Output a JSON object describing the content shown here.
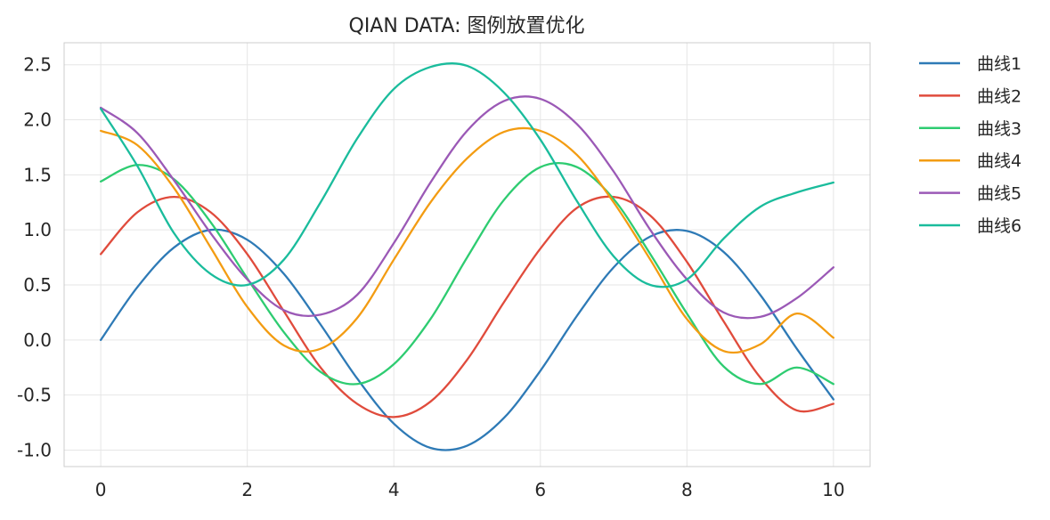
{
  "chart_data": {
    "type": "line",
    "title": "QIAN DATA: 图例放置优化",
    "xlabel": "",
    "ylabel": "",
    "xlim": [
      -0.5,
      10.5
    ],
    "ylim": [
      -1.15,
      2.7
    ],
    "x_ticks": [
      0,
      2,
      4,
      6,
      8,
      10
    ],
    "x_tick_labels": [
      "0",
      "2",
      "4",
      "6",
      "8",
      "10"
    ],
    "y_ticks": [
      -1.0,
      -0.5,
      0.0,
      0.5,
      1.0,
      1.5,
      2.0,
      2.5
    ],
    "y_tick_labels": [
      "-1.0",
      "-0.5",
      "0.0",
      "0.5",
      "1.0",
      "1.5",
      "2.0",
      "2.5"
    ],
    "grid": true,
    "legend_placement": "outside-right-top",
    "x": [
      0,
      0.5,
      1,
      1.5,
      2,
      2.5,
      3,
      3.5,
      4,
      4.5,
      5,
      5.5,
      6,
      6.5,
      7,
      7.5,
      8,
      8.5,
      9,
      9.5,
      10
    ],
    "series": [
      {
        "name": "曲线1",
        "color": "#2e7ab6",
        "values": [
          0.0,
          0.48,
          0.84,
          1.0,
          0.91,
          0.6,
          0.14,
          -0.35,
          -0.76,
          -0.98,
          -0.96,
          -0.71,
          -0.28,
          0.22,
          0.66,
          0.94,
          0.99,
          0.8,
          0.41,
          -0.08,
          -0.54
        ]
      },
      {
        "name": "曲线2",
        "color": "#e04b3c",
        "values": [
          0.78,
          1.16,
          1.3,
          1.16,
          0.78,
          0.26,
          -0.25,
          -0.58,
          -0.7,
          -0.56,
          -0.18,
          0.34,
          0.83,
          1.2,
          1.3,
          1.13,
          0.71,
          0.17,
          -0.34,
          -0.64,
          -0.58
        ]
      },
      {
        "name": "曲线3",
        "color": "#2ecc71",
        "values": [
          1.44,
          1.59,
          1.46,
          1.07,
          0.56,
          0.07,
          -0.29,
          -0.4,
          -0.22,
          0.19,
          0.75,
          1.27,
          1.57,
          1.57,
          1.28,
          0.78,
          0.24,
          -0.24,
          -0.4,
          -0.25,
          -0.4
        ]
      },
      {
        "name": "曲线4",
        "color": "#f39c12",
        "values": [
          1.9,
          1.77,
          1.38,
          0.84,
          0.3,
          -0.05,
          -0.08,
          0.2,
          0.73,
          1.25,
          1.65,
          1.89,
          1.9,
          1.68,
          1.25,
          0.73,
          0.19,
          -0.1,
          -0.04,
          0.24,
          0.02
        ]
      },
      {
        "name": "曲线5",
        "color": "#9b59b6",
        "values": [
          2.11,
          1.88,
          1.45,
          0.97,
          0.55,
          0.27,
          0.23,
          0.41,
          0.88,
          1.43,
          1.9,
          2.17,
          2.19,
          1.96,
          1.53,
          1.0,
          0.55,
          0.25,
          0.21,
          0.38,
          0.66
        ]
      },
      {
        "name": "曲线6",
        "color": "#1abc9c",
        "values": [
          2.1,
          1.58,
          0.97,
          0.6,
          0.5,
          0.73,
          1.25,
          1.83,
          2.28,
          2.48,
          2.49,
          2.25,
          1.82,
          1.26,
          0.76,
          0.5,
          0.55,
          0.92,
          1.21,
          1.34,
          1.43
        ]
      }
    ]
  }
}
